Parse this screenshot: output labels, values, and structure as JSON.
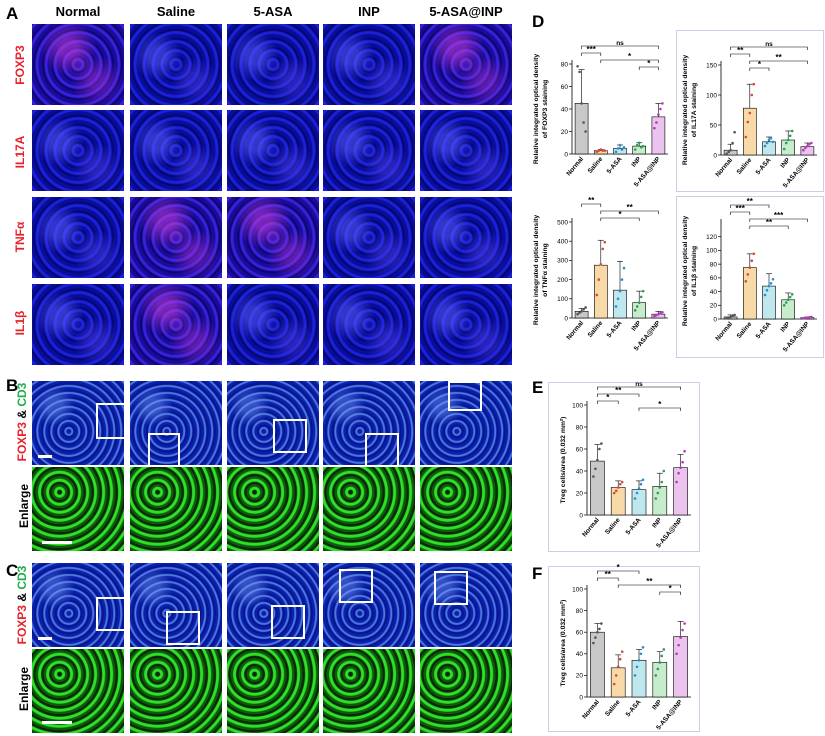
{
  "panel_labels": {
    "a": "A",
    "b": "B",
    "c": "C",
    "d": "D",
    "e": "E",
    "f": "F"
  },
  "columns": [
    "Normal",
    "Saline",
    "5-ASA",
    "INP",
    "5-ASA@INP"
  ],
  "panel_a_rows": [
    "FOXP3",
    "IL17A",
    "TNFα",
    "IL1β"
  ],
  "panel_b_labels": {
    "foxp3": "FOXP3",
    "amp": " & ",
    "cd3": "CD3",
    "enlarge": "Enlarge"
  },
  "panel_c_labels": {
    "foxp3": "FOXP3",
    "amp": " & ",
    "cd3": "CD3",
    "enlarge": "Enlarge"
  },
  "colors": {
    "Normal": "#c8c8c8",
    "Saline": "#f8d9a8",
    "5-ASA": "#bfe7ee",
    "INP": "#c6eccc",
    "5-ASA@INP": "#ebc3ee",
    "dot_Normal": "#555555",
    "dot_Saline": "#d44a3a",
    "dot_5-ASA": "#2a8fd0",
    "dot_INP": "#2a9e55",
    "dot_5-ASA@INP": "#b03ab8"
  },
  "chart_data": [
    {
      "id": "d1",
      "type": "bar",
      "categories": [
        "Normal",
        "Saline",
        "5-ASA",
        "INP",
        "5-ASA@INP"
      ],
      "values": [
        45,
        3,
        5,
        7,
        33
      ],
      "errors": [
        30,
        1,
        3,
        3,
        12
      ],
      "ylim": [
        0,
        80
      ],
      "yticks": [
        0,
        20,
        40,
        60,
        80
      ],
      "ylabel": "Relative integrated optical density of FOXP3 staining",
      "points": [
        [
          78,
          73,
          45,
          28,
          20
        ],
        [
          2,
          3,
          4,
          3,
          3
        ],
        [
          2,
          5,
          8,
          4,
          6
        ],
        [
          4,
          8,
          10,
          6,
          7
        ],
        [
          23,
          28,
          35,
          40,
          45
        ]
      ],
      "sig": [
        {
          "a": 0,
          "b": 4,
          "t": "ns"
        },
        {
          "a": 0,
          "b": 1,
          "t": "***"
        },
        {
          "a": 1,
          "b": 4,
          "t": "*"
        },
        {
          "a": 3,
          "b": 4,
          "t": "*"
        }
      ]
    },
    {
      "id": "d2",
      "type": "bar",
      "categories": [
        "Normal",
        "Saline",
        "5-ASA",
        "INP",
        "5-ASA@INP"
      ],
      "values": [
        8,
        78,
        22,
        25,
        14
      ],
      "errors": [
        10,
        40,
        8,
        15,
        6
      ],
      "ylim": [
        0,
        150
      ],
      "yticks": [
        0,
        50,
        100,
        150
      ],
      "ylabel": "Relative integrated optical density of IL17A staining",
      "points": [
        [
          2,
          5,
          8,
          20,
          38
        ],
        [
          30,
          55,
          70,
          100,
          118
        ],
        [
          15,
          20,
          25,
          28,
          22
        ],
        [
          10,
          20,
          25,
          32,
          40
        ],
        [
          8,
          12,
          15,
          18,
          20
        ]
      ],
      "sig": [
        {
          "a": 0,
          "b": 4,
          "t": "ns"
        },
        {
          "a": 0,
          "b": 1,
          "t": "**"
        },
        {
          "a": 1,
          "b": 4,
          "t": "**"
        },
        {
          "a": 1,
          "b": 2,
          "t": "*"
        }
      ]
    },
    {
      "id": "d3",
      "type": "bar",
      "categories": [
        "Normal",
        "Saline",
        "5-ASA",
        "INP",
        "5-ASA@INP"
      ],
      "values": [
        35,
        275,
        145,
        80,
        20
      ],
      "errors": [
        15,
        130,
        150,
        60,
        15
      ],
      "ylim": [
        0,
        500
      ],
      "yticks": [
        0,
        100,
        200,
        300,
        400,
        500
      ],
      "ylabel": "Relative integrated optical density of TNFα staining",
      "points": [
        [
          20,
          28,
          35,
          45,
          55
        ],
        [
          120,
          200,
          280,
          360,
          395
        ],
        [
          60,
          100,
          140,
          200,
          260
        ],
        [
          40,
          60,
          80,
          110,
          140
        ],
        [
          10,
          15,
          20,
          25,
          30
        ]
      ],
      "sig": [
        {
          "a": 0,
          "b": 1,
          "t": "**"
        },
        {
          "a": 1,
          "b": 4,
          "t": "**"
        },
        {
          "a": 1,
          "b": 3,
          "t": "*"
        }
      ]
    },
    {
      "id": "d4",
      "type": "bar",
      "categories": [
        "Normal",
        "Saline",
        "5-ASA",
        "INP",
        "5-ASA@INP"
      ],
      "values": [
        3,
        75,
        48,
        28,
        2
      ],
      "errors": [
        3,
        20,
        18,
        10,
        1
      ],
      "ylim": [
        0,
        140
      ],
      "yticks": [
        0,
        20,
        40,
        60,
        80,
        100,
        120
      ],
      "ylabel": "Relative integrated optical density of IL1β staining",
      "points": [
        [
          1,
          2,
          3,
          5,
          6
        ],
        [
          55,
          65,
          75,
          85,
          95
        ],
        [
          35,
          42,
          48,
          52,
          58
        ],
        [
          20,
          24,
          28,
          32,
          36
        ],
        [
          1,
          1.5,
          2,
          2.5,
          3
        ]
      ],
      "sig": [
        {
          "a": 0,
          "b": 2,
          "t": "**"
        },
        {
          "a": 0,
          "b": 1,
          "t": "***"
        },
        {
          "a": 1,
          "b": 4,
          "t": "***"
        },
        {
          "a": 1,
          "b": 3,
          "t": "**"
        }
      ]
    },
    {
      "id": "e",
      "type": "bar",
      "categories": [
        "Normal",
        "Saline",
        "5-ASA",
        "INP",
        "5-ASA@INP"
      ],
      "values": [
        49,
        25,
        23,
        26,
        43
      ],
      "errors": [
        15,
        6,
        8,
        12,
        12
      ],
      "ylim": [
        0,
        100
      ],
      "yticks": [
        0,
        20,
        40,
        60,
        80,
        100
      ],
      "ylabel": "Treg cells/area (0.032 mm²)",
      "points": [
        [
          35,
          42,
          50,
          60,
          65
        ],
        [
          20,
          22,
          25,
          28,
          30
        ],
        [
          15,
          20,
          24,
          28,
          32
        ],
        [
          15,
          20,
          25,
          30,
          40
        ],
        [
          30,
          38,
          43,
          48,
          58
        ]
      ],
      "sig": [
        {
          "a": 0,
          "b": 4,
          "t": "ns"
        },
        {
          "a": 0,
          "b": 2,
          "t": "**"
        },
        {
          "a": 0,
          "b": 1,
          "t": "*"
        },
        {
          "a": 2,
          "b": 4,
          "t": "*"
        }
      ]
    },
    {
      "id": "f",
      "type": "bar",
      "categories": [
        "Normal",
        "Saline",
        "5-ASA",
        "INP",
        "5-ASA@INP"
      ],
      "values": [
        60,
        27,
        34,
        32,
        56
      ],
      "errors": [
        8,
        12,
        10,
        10,
        14
      ],
      "ylim": [
        0,
        100
      ],
      "yticks": [
        0,
        20,
        40,
        60,
        80,
        100
      ],
      "ylabel": "Treg cells/area (0.032 mm²)",
      "points": [
        [
          50,
          55,
          60,
          63,
          68
        ],
        [
          12,
          20,
          28,
          35,
          42
        ],
        [
          20,
          28,
          34,
          40,
          46
        ],
        [
          20,
          26,
          32,
          38,
          44
        ],
        [
          40,
          48,
          55,
          62,
          68
        ]
      ],
      "sig": [
        {
          "a": 0,
          "b": 2,
          "t": "*"
        },
        {
          "a": 0,
          "b": 1,
          "t": "**"
        },
        {
          "a": 1,
          "b": 4,
          "t": "**"
        },
        {
          "a": 3,
          "b": 4,
          "t": "*"
        }
      ]
    }
  ]
}
